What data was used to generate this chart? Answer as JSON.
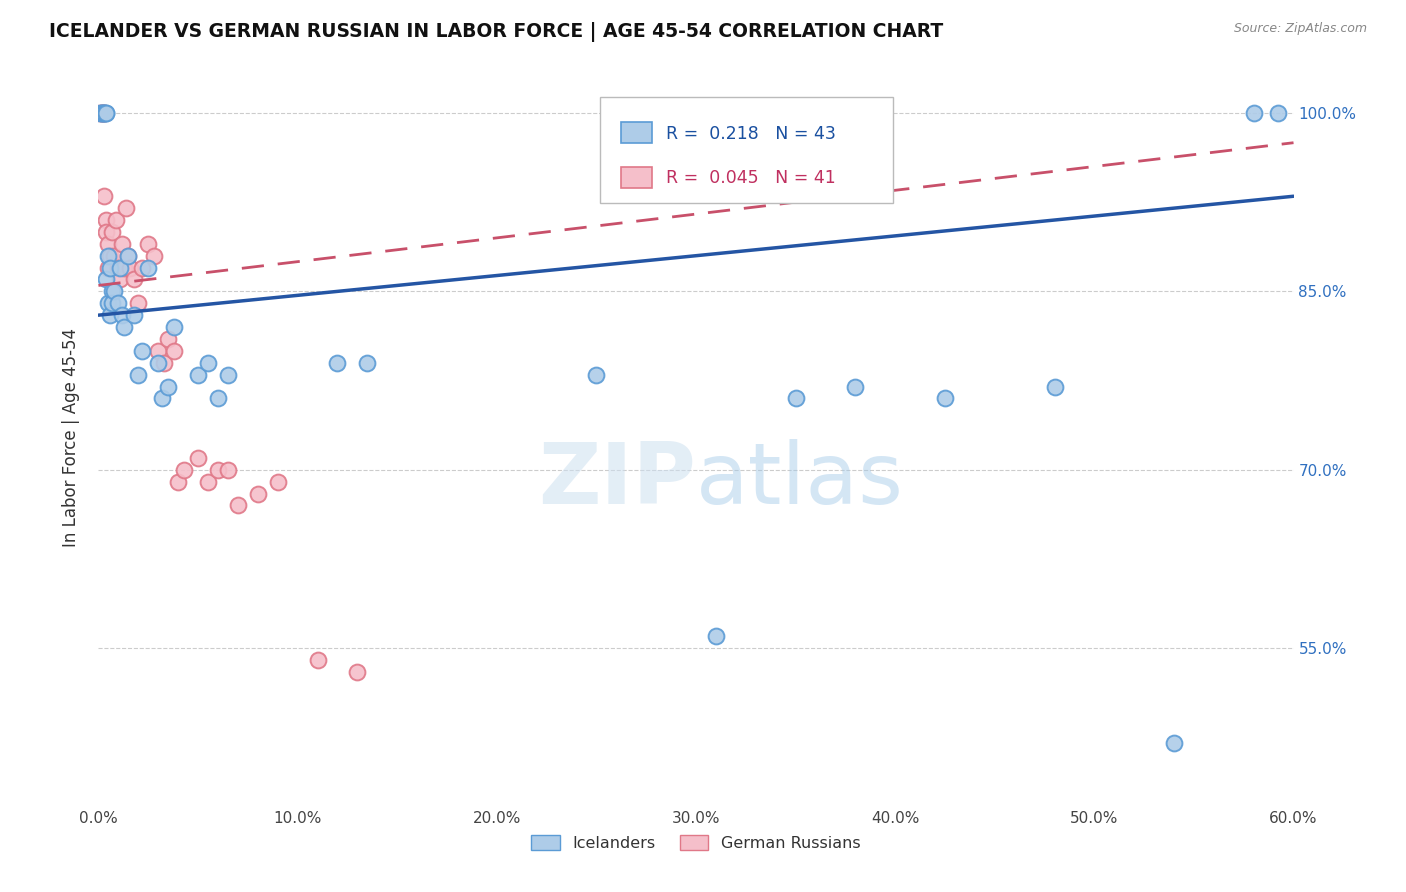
{
  "title": "ICELANDER VS GERMAN RUSSIAN IN LABOR FORCE | AGE 45-54 CORRELATION CHART",
  "source": "Source: ZipAtlas.com",
  "ylabel": "In Labor Force | Age 45-54",
  "x_min": 0.0,
  "x_max": 0.6,
  "y_min": 0.42,
  "y_max": 1.035,
  "x_ticks": [
    0.0,
    0.1,
    0.2,
    0.3,
    0.4,
    0.5,
    0.6
  ],
  "x_tick_labels": [
    "0.0%",
    "10.0%",
    "20.0%",
    "30.0%",
    "40.0%",
    "50.0%",
    "60.0%"
  ],
  "y_ticks": [
    0.55,
    0.7,
    0.85,
    1.0
  ],
  "y_tick_labels": [
    "55.0%",
    "70.0%",
    "85.0%",
    "100.0%"
  ],
  "grid_color": "#cccccc",
  "background_color": "#ffffff",
  "icelanders_color": "#aecce8",
  "icelanders_edge_color": "#5b9bd5",
  "german_russians_color": "#f5bfca",
  "german_russians_edge_color": "#e07888",
  "icelanders_R": 0.218,
  "icelanders_N": 43,
  "german_russians_R": 0.045,
  "german_russians_N": 41,
  "icelanders_line_color": "#2455a4",
  "german_russians_line_color": "#c8506a",
  "icelanders_x": [
    0.001,
    0.002,
    0.002,
    0.003,
    0.003,
    0.004,
    0.004,
    0.004,
    0.005,
    0.005,
    0.006,
    0.006,
    0.007,
    0.007,
    0.008,
    0.01,
    0.011,
    0.012,
    0.013,
    0.015,
    0.018,
    0.02,
    0.022,
    0.025,
    0.03,
    0.032,
    0.035,
    0.038,
    0.05,
    0.055,
    0.06,
    0.065,
    0.12,
    0.135,
    0.25,
    0.35,
    0.48,
    0.54,
    0.58,
    0.592,
    0.31,
    0.38,
    0.425
  ],
  "icelanders_y": [
    1.0,
    1.0,
    1.0,
    1.0,
    1.0,
    1.0,
    1.0,
    0.86,
    0.88,
    0.84,
    0.87,
    0.83,
    0.85,
    0.84,
    0.85,
    0.84,
    0.87,
    0.83,
    0.82,
    0.88,
    0.83,
    0.78,
    0.8,
    0.87,
    0.79,
    0.76,
    0.77,
    0.82,
    0.78,
    0.79,
    0.76,
    0.78,
    0.79,
    0.79,
    0.78,
    0.76,
    0.77,
    0.47,
    1.0,
    1.0,
    0.56,
    0.77,
    0.76
  ],
  "german_russians_x": [
    0.001,
    0.002,
    0.002,
    0.003,
    0.003,
    0.003,
    0.004,
    0.004,
    0.005,
    0.005,
    0.006,
    0.007,
    0.008,
    0.009,
    0.01,
    0.011,
    0.012,
    0.013,
    0.014,
    0.015,
    0.016,
    0.018,
    0.02,
    0.022,
    0.025,
    0.028,
    0.03,
    0.033,
    0.035,
    0.038,
    0.04,
    0.043,
    0.05,
    0.055,
    0.06,
    0.065,
    0.07,
    0.08,
    0.09,
    0.11,
    0.13
  ],
  "german_russians_y": [
    1.0,
    1.0,
    1.0,
    1.0,
    1.0,
    0.93,
    0.91,
    0.9,
    0.89,
    0.87,
    0.88,
    0.9,
    0.88,
    0.91,
    0.87,
    0.86,
    0.89,
    0.87,
    0.92,
    0.88,
    0.87,
    0.86,
    0.84,
    0.87,
    0.89,
    0.88,
    0.8,
    0.79,
    0.81,
    0.8,
    0.69,
    0.7,
    0.71,
    0.69,
    0.7,
    0.7,
    0.67,
    0.68,
    0.69,
    0.54,
    0.53
  ]
}
